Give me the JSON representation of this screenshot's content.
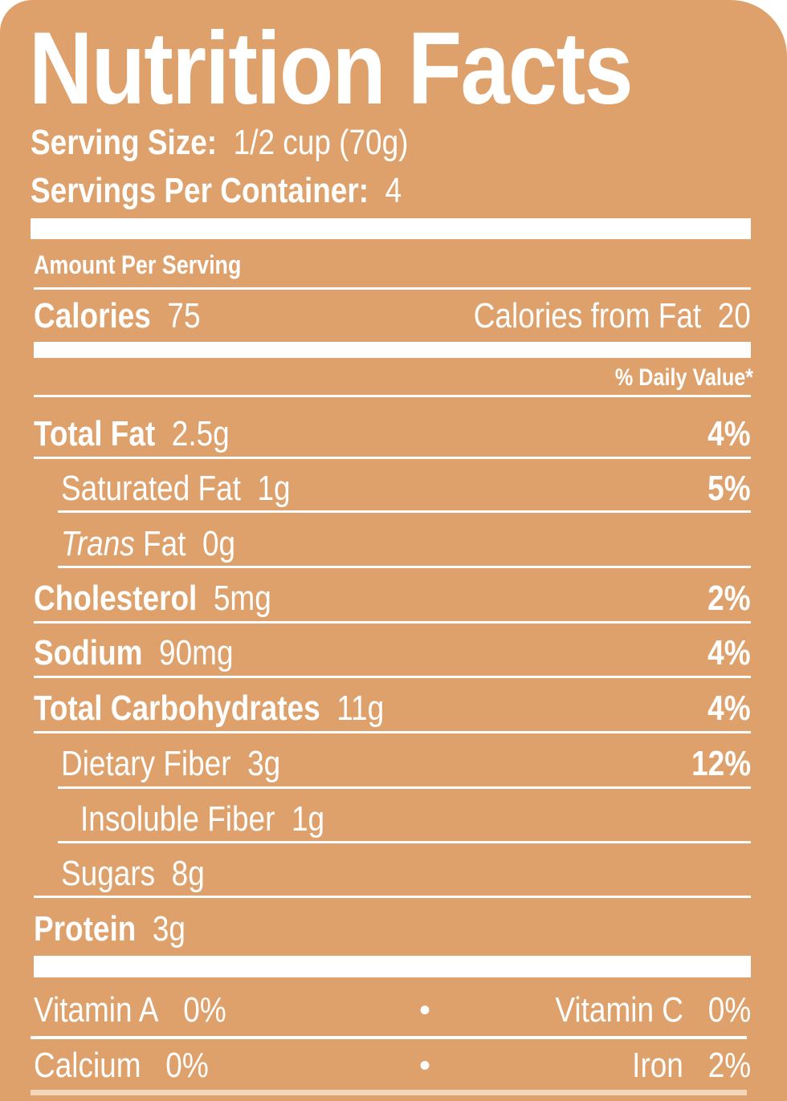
{
  "title": "Nutrition Facts",
  "serving_size": {
    "label": "Serving Size:",
    "value": "1/2 cup (70g)"
  },
  "servings_per_container": {
    "label": "Servings Per Container:",
    "value": "4"
  },
  "amount_per_serving": "Amount Per Serving",
  "calories": {
    "label": "Calories",
    "value": "75",
    "from_fat_label": "Calories from Fat",
    "from_fat_value": "20"
  },
  "daily_value_header": "% Daily Value*",
  "nutrients": [
    {
      "label": "Total Fat",
      "amount": "2.5g",
      "dv": "4%"
    },
    {
      "label": "Saturated Fat",
      "amount": "1g",
      "dv": "5%"
    },
    {
      "label_italic": "Trans",
      "label": "Fat",
      "amount": "0g"
    },
    {
      "label": "Cholesterol",
      "amount": "5mg",
      "dv": "2%"
    },
    {
      "label": "Sodium",
      "amount": "90mg",
      "dv": "4%"
    },
    {
      "label": "Total Carbohydrates",
      "amount": "11g",
      "dv": "4%"
    },
    {
      "label": "Dietary Fiber",
      "amount": "3g",
      "dv": "12%"
    },
    {
      "label": "Insoluble Fiber",
      "amount": "1g"
    },
    {
      "label": "Sugars",
      "amount": "8g"
    },
    {
      "label": "Protein",
      "amount": "3g"
    }
  ],
  "vitamins": [
    {
      "left_label": "Vitamin A",
      "left_value": "0%",
      "separator": "•",
      "right_label": "Vitamin C",
      "right_value": "0%"
    },
    {
      "left_label": "Calcium",
      "left_value": "0%",
      "separator": "•",
      "right_label": "Iron",
      "right_value": "2%"
    }
  ],
  "colors": {
    "background": "#dfa16b",
    "text": "#ffffff"
  }
}
